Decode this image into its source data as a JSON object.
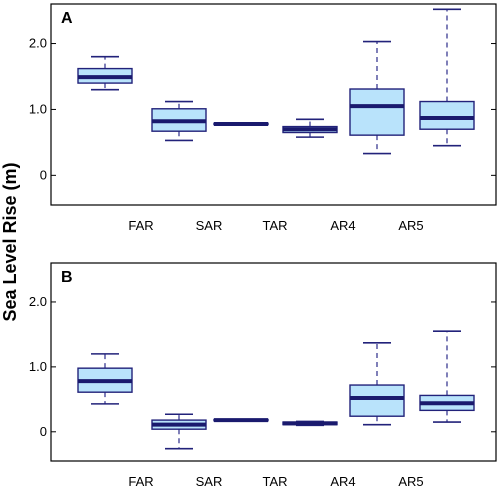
{
  "ylabel": "Sea Level Rise (m)",
  "colors": {
    "box_fill": "#b9e3fb",
    "box_edge": "#22227a",
    "median": "#1a1a6e",
    "whisker": "#2b2b8a",
    "axes": "#000000"
  },
  "chart_data": [
    {
      "type": "box",
      "panel_label": "A",
      "categories": [
        "FAR",
        "SAR",
        "TAR",
        "AR4",
        "AR5"
      ],
      "yticks": [
        "0",
        "1.0",
        "2.0"
      ],
      "ylim": [
        -0.45,
        2.6
      ],
      "grid": false,
      "boxes": [
        {
          "name": "FAR",
          "min": 1.3,
          "q1": 1.4,
          "median": 1.49,
          "q3": 1.62,
          "max": 1.8
        },
        {
          "name": "SAR",
          "min": 0.53,
          "q1": 0.67,
          "median": 0.82,
          "q3": 1.01,
          "max": 1.12
        },
        {
          "name": "TAR",
          "min": 0.77,
          "q1": 0.77,
          "median": 0.78,
          "q3": 0.79,
          "max": 0.79
        },
        {
          "name": "AR4",
          "min": 0.58,
          "q1": 0.65,
          "median": 0.7,
          "q3": 0.74,
          "max": 0.85
        },
        {
          "name": "AR5",
          "min": 0.33,
          "q1": 0.61,
          "median": 1.05,
          "q3": 1.31,
          "max": 2.03
        },
        {
          "name": "AR5",
          "min": 0.45,
          "q1": 0.7,
          "median": 0.87,
          "q3": 1.12,
          "max": 2.52
        }
      ]
    },
    {
      "type": "box",
      "panel_label": "B",
      "categories": [
        "FAR",
        "SAR",
        "TAR",
        "AR4",
        "AR5"
      ],
      "yticks": [
        "0",
        "1.0",
        "2.0"
      ],
      "ylim": [
        -0.45,
        2.6
      ],
      "grid": false,
      "boxes": [
        {
          "name": "FAR",
          "min": 0.43,
          "q1": 0.61,
          "median": 0.78,
          "q3": 0.98,
          "max": 1.2
        },
        {
          "name": "SAR",
          "min": -0.26,
          "q1": 0.04,
          "median": 0.11,
          "q3": 0.18,
          "max": 0.27
        },
        {
          "name": "TAR",
          "min": 0.17,
          "q1": 0.17,
          "median": 0.18,
          "q3": 0.19,
          "max": 0.19
        },
        {
          "name": "AR4",
          "min": 0.1,
          "q1": 0.11,
          "median": 0.13,
          "q3": 0.15,
          "max": 0.16
        },
        {
          "name": "AR5",
          "min": 0.11,
          "q1": 0.24,
          "median": 0.52,
          "q3": 0.72,
          "max": 1.37
        },
        {
          "name": "AR5",
          "min": 0.15,
          "q1": 0.33,
          "median": 0.44,
          "q3": 0.56,
          "max": 1.55
        }
      ]
    }
  ]
}
